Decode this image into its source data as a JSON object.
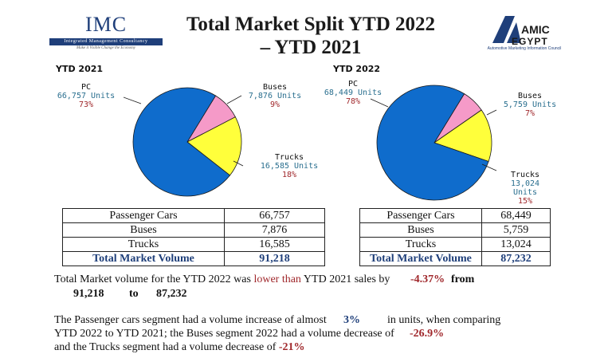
{
  "header": {
    "title_line1": "Total Market Split YTD 2022",
    "title_line2": "– YTD 2021",
    "imc_logo": "IMC",
    "imc_subtitle": "Integrated Management Consultancy",
    "imc_tagline": "Make it Visible Change the Economy",
    "amic_logo_1": "AMIC",
    "amic_logo_2": "EGYPT",
    "amic_tagline": "Automotive Marketing Information Council"
  },
  "chart_data": [
    {
      "type": "pie",
      "title": "YTD 2021",
      "slices": [
        {
          "name": "PC",
          "units_label": "66,757 Units",
          "value": 66757,
          "percent_label": "73%",
          "color": "#0f6ccc"
        },
        {
          "name": "Buses",
          "units_label": "7,876 Units",
          "value": 7876,
          "percent_label": "9%",
          "color": "#f59ac8"
        },
        {
          "name": "Trucks",
          "units_label": "16,585 Units",
          "value": 16585,
          "percent_label": "18%",
          "color": "#ffff3b"
        }
      ]
    },
    {
      "type": "pie",
      "title": "YTD 2022",
      "slices": [
        {
          "name": "PC",
          "units_label": "68,449 Units",
          "value": 68449,
          "percent_label": "78%",
          "color": "#0f6ccc"
        },
        {
          "name": "Buses",
          "units_label": "5,759 Units",
          "value": 5759,
          "percent_label": "7%",
          "color": "#f59ac8"
        },
        {
          "name": "Trucks",
          "units_label": "13,024 Units",
          "value": 13024,
          "percent_label": "15%",
          "color": "#ffff3b"
        }
      ]
    }
  ],
  "tables": {
    "ytd2021": {
      "rows": [
        {
          "label": "Passenger Cars",
          "value": "66,757"
        },
        {
          "label": "Buses",
          "value": "7,876"
        },
        {
          "label": "Trucks",
          "value": "16,585"
        }
      ],
      "total_label": "Total Market Volume",
      "total_value": "91,218"
    },
    "ytd2022": {
      "rows": [
        {
          "label": "Passenger Cars",
          "value": "68,449"
        },
        {
          "label": "Buses",
          "value": "5,759"
        },
        {
          "label": "Trucks",
          "value": "13,024"
        }
      ],
      "total_label": "Total Market Volume",
      "total_value": "87,232"
    }
  },
  "text": {
    "p1_a": "Total Market volume for the YTD 2022 was ",
    "p1_b": "lower than",
    "p1_c": " YTD 2021 sales by",
    "p1_pct": "-4.37%",
    "p1_from": "from",
    "p1_v1": "91,218",
    "p1_to": "to",
    "p1_v2": "87,232",
    "p2_a": "The Passenger cars segment had a volume increase of almost",
    "p2_pct": "3%",
    "p2_b": "in units, when comparing",
    "p3_a": "YTD 2022 to YTD 2021; the Buses segment 2022  had a volume decrease of",
    "p3_pct": "-26.9%",
    "p4_a": "and the Trucks segment had a volume decrease of",
    "p4_pct": "-21%"
  }
}
